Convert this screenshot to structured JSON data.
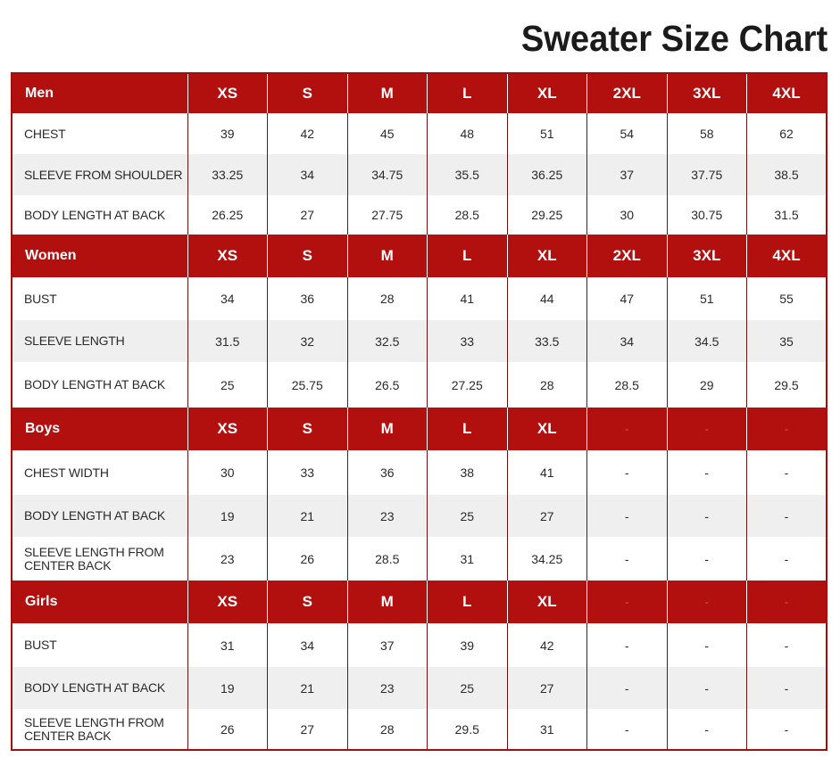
{
  "title": "Sweater Size Chart",
  "colors": {
    "header_bg": "#b1100f",
    "header_text": "#ffffff",
    "row_alt": "#efefef",
    "border": "#a50d0d"
  },
  "sections": [
    {
      "name": "Men",
      "sizes": [
        "XS",
        "S",
        "M",
        "L",
        "XL",
        "2XL",
        "3XL",
        "4XL"
      ],
      "rows": [
        {
          "label": "CHEST",
          "values": [
            "39",
            "42",
            "45",
            "48",
            "51",
            "54",
            "58",
            "62"
          ]
        },
        {
          "label": "SLEEVE FROM SHOULDER",
          "values": [
            "33.25",
            "34",
            "34.75",
            "35.5",
            "36.25",
            "37",
            "37.75",
            "38.5"
          ]
        },
        {
          "label": "BODY LENGTH AT BACK",
          "values": [
            "26.25",
            "27",
            "27.75",
            "28.5",
            "29.25",
            "30",
            "30.75",
            "31.5"
          ]
        }
      ]
    },
    {
      "name": "Women",
      "sizes": [
        "XS",
        "S",
        "M",
        "L",
        "XL",
        "2XL",
        "3XL",
        "4XL"
      ],
      "rows": [
        {
          "label": "BUST",
          "values": [
            "34",
            "36",
            "28",
            "41",
            "44",
            "47",
            "51",
            "55"
          ]
        },
        {
          "label": "SLEEVE LENGTH",
          "values": [
            "31.5",
            "32",
            "32.5",
            "33",
            "33.5",
            "34",
            "34.5",
            "35"
          ]
        },
        {
          "label": "BODY LENGTH AT BACK",
          "values": [
            "25",
            "25.75",
            "26.5",
            "27.25",
            "28",
            "28.5",
            "29",
            "29.5"
          ]
        }
      ]
    },
    {
      "name": "Boys",
      "sizes": [
        "XS",
        "S",
        "M",
        "L",
        "XL",
        "-",
        "-",
        "-"
      ],
      "rows": [
        {
          "label": "CHEST WIDTH",
          "values": [
            "30",
            "33",
            "36",
            "38",
            "41",
            "-",
            "-",
            "-"
          ]
        },
        {
          "label": "BODY LENGTH AT BACK",
          "values": [
            "19",
            "21",
            "23",
            "25",
            "27",
            "-",
            "-",
            "-"
          ]
        },
        {
          "label": "SLEEVE LENGTH FROM CENTER BACK",
          "values": [
            "23",
            "26",
            "28.5",
            "31",
            "34.25",
            "-",
            "-",
            "-"
          ]
        }
      ]
    },
    {
      "name": "Girls",
      "sizes": [
        "XS",
        "S",
        "M",
        "L",
        "XL",
        "-",
        "-",
        "-"
      ],
      "rows": [
        {
          "label": "BUST",
          "values": [
            "31",
            "34",
            "37",
            "39",
            "42",
            "-",
            "-",
            "-"
          ]
        },
        {
          "label": "BODY LENGTH AT BACK",
          "values": [
            "19",
            "21",
            "23",
            "25",
            "27",
            "-",
            "-",
            "-"
          ]
        },
        {
          "label": "SLEEVE LENGTH FROM CENTER BACK",
          "values": [
            "26",
            "27",
            "28",
            "29.5",
            "31",
            "-",
            "-",
            "-"
          ]
        }
      ]
    }
  ]
}
